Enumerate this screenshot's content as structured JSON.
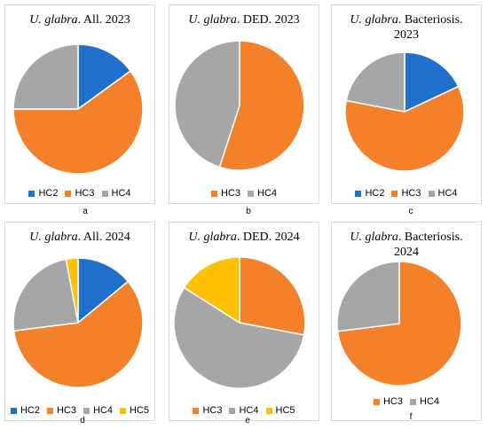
{
  "colors": {
    "HC2": "#1f6fcc",
    "HC3": "#f4802a",
    "HC4": "#a6a6a6",
    "HC5": "#ffc000"
  },
  "chart_data": [
    {
      "type": "pie",
      "label": "a",
      "title": {
        "species": "U. glabra",
        "rest": ". All. 2023"
      },
      "legend": [
        "HC2",
        "HC3",
        "HC4"
      ],
      "series": [
        {
          "values": [
            15,
            60,
            25
          ],
          "categories": [
            "HC2",
            "HC3",
            "HC4"
          ]
        }
      ]
    },
    {
      "type": "pie",
      "label": "b",
      "title": {
        "species": "U. glabra",
        "rest": ". DED. 2023"
      },
      "legend": [
        "HC3",
        "HC4"
      ],
      "series": [
        {
          "values": [
            55,
            45
          ],
          "categories": [
            "HC3",
            "HC4"
          ]
        }
      ]
    },
    {
      "type": "pie",
      "label": "c",
      "title": {
        "species": "U. glabra",
        "rest": ". Bacteriosis.",
        "line2": "2023"
      },
      "legend": [
        "HC2",
        "HC3",
        "HC4"
      ],
      "series": [
        {
          "values": [
            18,
            60,
            22
          ],
          "categories": [
            "HC2",
            "HC3",
            "HC4"
          ]
        }
      ]
    },
    {
      "type": "pie",
      "label": "d",
      "title": {
        "species": "U. glabra",
        "rest": ". All. 2024"
      },
      "legend": [
        "HC2",
        "HC3",
        "HC4",
        "HC5"
      ],
      "series": [
        {
          "values": [
            14,
            59,
            24,
            3
          ],
          "categories": [
            "HC2",
            "HC3",
            "HC4",
            "HC5"
          ]
        }
      ]
    },
    {
      "type": "pie",
      "label": "e",
      "title": {
        "species": "U. glabra",
        "rest": ". DED. 2024"
      },
      "legend": [
        "HC3",
        "HC4",
        "HC5"
      ],
      "series": [
        {
          "values": [
            28,
            56,
            16
          ],
          "categories": [
            "HC3",
            "HC4",
            "HC5"
          ]
        }
      ]
    },
    {
      "type": "pie",
      "label": "f",
      "title": {
        "species": "U. glabra",
        "rest": ". Bacteriosis.",
        "line2": "2024"
      },
      "legend": [
        "HC3",
        "HC4"
      ],
      "series": [
        {
          "values": [
            73,
            27
          ],
          "categories": [
            "HC3",
            "HC4"
          ]
        }
      ]
    }
  ]
}
